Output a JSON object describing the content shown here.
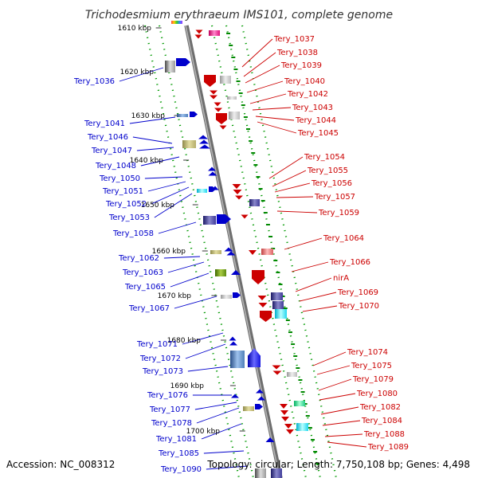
{
  "title": "Trichodesmium erythraeum IMS101, complete genome",
  "footer": {
    "accession": "Accession: NC_008312",
    "topology": "Topology: circular; Length: 7,750,108 bp; Genes: 4,498"
  },
  "colors": {
    "plus_strand": "#0000cc",
    "minus_strand": "#cc0000",
    "backbone": "#808080",
    "tick": "#009900"
  },
  "scale": {
    "labels": [
      "1610 kbp",
      "1620 kbp",
      "1630 kbp",
      "1640 kbp",
      "1650 kbp",
      "1660 kbp",
      "1670 kbp",
      "1680 kbp",
      "1690 kbp",
      "1700 kbp"
    ]
  },
  "left_labels": [
    "Tery_1036",
    "Tery_1041",
    "Tery_1046",
    "Tery_1047",
    "Tery_1048",
    "Tery_1050",
    "Tery_1051",
    "Tery_1052",
    "Tery_1053",
    "Tery_1058",
    "Tery_1062",
    "Tery_1063",
    "Tery_1065",
    "Tery_1067",
    "Tery_1071",
    "Tery_1072",
    "Tery_1073",
    "Tery_1076",
    "Tery_1077",
    "Tery_1078",
    "Tery_1081",
    "Tery_1085",
    "Tery_1090"
  ],
  "right_labels": [
    "Tery_1037",
    "Tery_1038",
    "Tery_1039",
    "Tery_1040",
    "Tery_1042",
    "Tery_1043",
    "Tery_1044",
    "Tery_1045",
    "Tery_1054",
    "Tery_1055",
    "Tery_1056",
    "Tery_1057",
    "Tery_1059",
    "Tery_1064",
    "Tery_1066",
    "nirA",
    "Tery_1069",
    "Tery_1070",
    "Tery_1074",
    "Tery_1075",
    "Tery_1079",
    "Tery_1080",
    "Tery_1082",
    "Tery_1084",
    "Tery_1088",
    "Tery_1089"
  ]
}
